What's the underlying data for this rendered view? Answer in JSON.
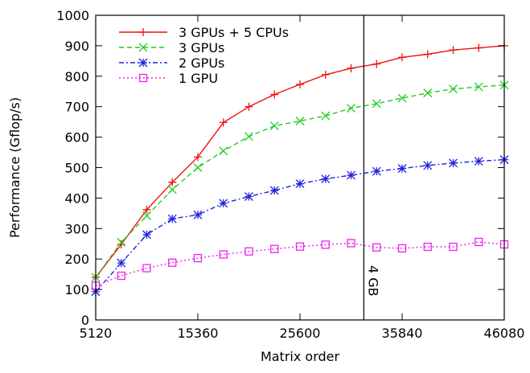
{
  "chart_data": {
    "type": "line",
    "xlabel": "Matrix order",
    "ylabel": "Performance (Gflop/s)",
    "xlim": [
      5120,
      46080
    ],
    "ylim": [
      0,
      1000
    ],
    "xticks": [
      5120,
      15360,
      25600,
      35840,
      46080
    ],
    "yticks": [
      0,
      100,
      200,
      300,
      400,
      500,
      600,
      700,
      800,
      900,
      1000
    ],
    "grid": false,
    "legend_position": "top-left",
    "x": [
      5120,
      7680,
      10240,
      12800,
      15360,
      17920,
      20480,
      23040,
      25600,
      28160,
      30720,
      33280,
      35840,
      38400,
      40960,
      43520,
      46080
    ],
    "series": [
      {
        "name": "3 GPUs + 5 CPUs",
        "color": "#ee1111",
        "dash": "solid",
        "marker": "plus",
        "values": [
          140,
          248,
          362,
          452,
          535,
          648,
          700,
          740,
          773,
          805,
          826,
          840,
          862,
          872,
          886,
          893,
          900
        ]
      },
      {
        "name": "3 GPUs",
        "color": "#22cc22",
        "dash": "dashed",
        "marker": "cross",
        "values": [
          140,
          255,
          342,
          428,
          500,
          555,
          602,
          637,
          653,
          670,
          695,
          710,
          728,
          745,
          758,
          765,
          771
        ]
      },
      {
        "name": "2 GPUs",
        "color": "#2222dd",
        "dash": "dashdot",
        "marker": "star",
        "values": [
          93,
          187,
          280,
          332,
          345,
          383,
          405,
          425,
          447,
          463,
          475,
          488,
          497,
          507,
          515,
          521,
          526
        ]
      },
      {
        "name": "1 GPU",
        "color": "#ee22ee",
        "dash": "dotted",
        "marker": "square",
        "values": [
          112,
          145,
          170,
          188,
          203,
          215,
          225,
          233,
          241,
          247,
          252,
          238,
          235,
          240,
          240,
          256,
          248
        ]
      }
    ],
    "annotations": [
      {
        "type": "vline",
        "x": 32000,
        "label": "4 GB"
      }
    ]
  }
}
